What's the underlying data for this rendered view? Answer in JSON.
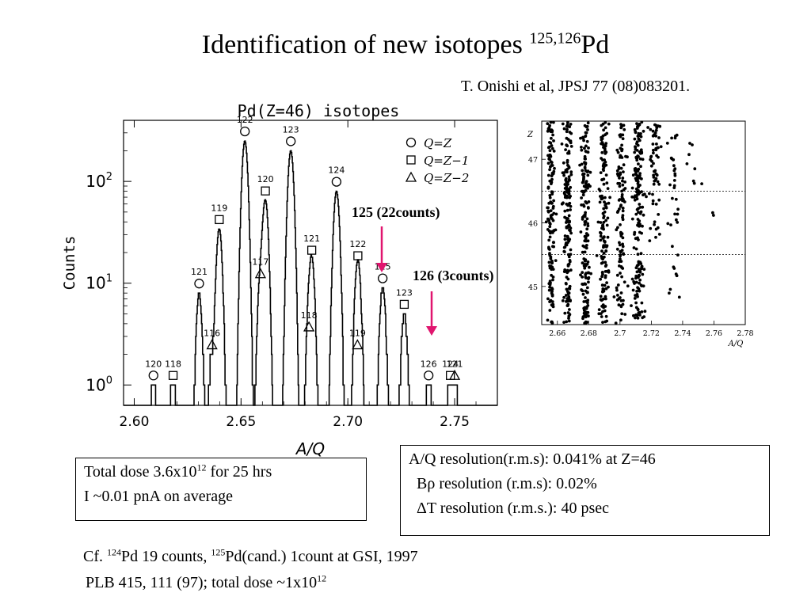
{
  "slide": {
    "title_prefix": "Identification of new isotopes ",
    "title_sup": "125,126",
    "title_suffix": "Pd",
    "reference": "T. Onishi et al, JPSJ 77 (08)083201."
  },
  "annotations": {
    "pd125": "125 (22counts)",
    "pd126": "126 (3counts)",
    "arrow_color": "#e0156e"
  },
  "dose_box": {
    "line1_prefix": "Total dose 3.6x10",
    "line1_sup": "12",
    "line1_suffix": " for 25 hrs",
    "line2": "I ~0.01 pnA on average"
  },
  "resolution_box": {
    "line1": "A/Q resolution(r.m.s): 0.041% at Z=46",
    "line2_symbol": "Bρ",
    "line2_rest": " resolution (r.m.s): 0.02%",
    "line3_symbol": "ΔT",
    "line3_rest": " resolution (r.m.s.): 40 psec"
  },
  "footnote": {
    "cf": "Cf. ",
    "sup1": "124",
    "part1": "Pd  19 counts, ",
    "sup2": "125",
    "part2": "Pd(cand.) 1count at GSI, 1997",
    "line2": "PLB 415, 111 (97); total dose ~1x10",
    "line2_sup": "12"
  },
  "chart_data": [
    {
      "type": "line",
      "title": "Pd(Z=46)  isotopes",
      "xlabel": "A/Q",
      "ylabel": "Counts",
      "xlim": [
        2.595,
        2.77
      ],
      "ylim_log10": [
        -0.2,
        2.6
      ],
      "y_scale": "log",
      "x_ticks": [
        "2.60",
        "2.65",
        "2.70",
        "2.75"
      ],
      "x_tick_values": [
        2.6,
        2.65,
        2.7,
        2.75
      ],
      "y_ticks": [
        {
          "base": "10",
          "exp": "0",
          "value": 1
        },
        {
          "base": "10",
          "exp": "1",
          "value": 10
        },
        {
          "base": "10",
          "exp": "2",
          "value": 100
        }
      ],
      "legend": {
        "position": "top-right",
        "entries": [
          {
            "marker": "circle",
            "label": "Q=Z"
          },
          {
            "marker": "square",
            "label": "Q=Z−1"
          },
          {
            "marker": "triangle",
            "label": "Q=Z−2"
          }
        ]
      },
      "peaks": [
        {
          "a": 120,
          "q": 46,
          "x": 2.609,
          "height": 1,
          "marker": "circle"
        },
        {
          "a": 118,
          "q": 45,
          "x": 2.6182,
          "height": 1,
          "marker": "square"
        },
        {
          "a": 121,
          "q": 46,
          "x": 2.6304,
          "height": 8,
          "marker": "circle"
        },
        {
          "a": 116,
          "q": 44,
          "x": 2.6364,
          "height": 2,
          "marker": "triangle"
        },
        {
          "a": 119,
          "q": 45,
          "x": 2.6398,
          "height": 34,
          "marker": "square"
        },
        {
          "a": 122,
          "q": 46,
          "x": 2.6518,
          "height": 250,
          "marker": "circle"
        },
        {
          "a": 117,
          "q": 44,
          "x": 2.6591,
          "height": 10,
          "marker": "triangle"
        },
        {
          "a": 120,
          "q": 45,
          "x": 2.6614,
          "height": 65,
          "marker": "square"
        },
        {
          "a": 123,
          "q": 46,
          "x": 2.6733,
          "height": 200,
          "marker": "circle"
        },
        {
          "a": 118,
          "q": 44,
          "x": 2.6818,
          "height": 3,
          "marker": "triangle"
        },
        {
          "a": 121,
          "q": 45,
          "x": 2.6831,
          "height": 17,
          "marker": "square"
        },
        {
          "a": 124,
          "q": 46,
          "x": 2.6947,
          "height": 80,
          "marker": "circle"
        },
        {
          "a": 119,
          "q": 44,
          "x": 2.7045,
          "height": 2,
          "marker": "triangle"
        },
        {
          "a": 122,
          "q": 45,
          "x": 2.7047,
          "height": 15,
          "marker": "square"
        },
        {
          "a": 125,
          "q": 46,
          "x": 2.7163,
          "height": 9,
          "marker": "circle"
        },
        {
          "a": 123,
          "q": 45,
          "x": 2.7264,
          "height": 5,
          "marker": "square"
        },
        {
          "a": 126,
          "q": 46,
          "x": 2.7378,
          "height": 1,
          "marker": "circle"
        },
        {
          "a": 121,
          "q": 44,
          "x": 2.75,
          "height": 1,
          "marker": "triangle"
        },
        {
          "a": 124,
          "q": 45,
          "x": 2.748,
          "height": 1,
          "marker": "square"
        }
      ]
    },
    {
      "type": "scatter",
      "xlabel": "A/Q",
      "ylabel": "Z",
      "xlim": [
        2.65,
        2.78
      ],
      "ylim": [
        44.4,
        47.6
      ],
      "x_ticks": [
        "2.66",
        "2.68",
        "2.7",
        "2.72",
        "2.74",
        "2.76",
        "2.78"
      ],
      "x_tick_values": [
        2.66,
        2.68,
        2.7,
        2.72,
        2.74,
        2.76,
        2.78
      ],
      "y_ticks": [
        "45",
        "46",
        "47"
      ],
      "y_tick_values": [
        45,
        46,
        47
      ],
      "dashed_separators": [
        45.5,
        46.5
      ],
      "clusters": [
        {
          "x": 2.656,
          "sx": 0.0012,
          "n": 150,
          "zmin": 44.4,
          "zmax": 47.6
        },
        {
          "x": 2.6665,
          "sx": 0.0014,
          "n": 170,
          "zmin": 44.4,
          "zmax": 47.6
        },
        {
          "x": 2.678,
          "sx": 0.0013,
          "n": 170,
          "zmin": 44.4,
          "zmax": 47.6
        },
        {
          "x": 2.6895,
          "sx": 0.0015,
          "n": 160,
          "zmin": 44.4,
          "zmax": 47.6
        },
        {
          "x": 2.7005,
          "sx": 0.0015,
          "n": 120,
          "zmin": 44.4,
          "zmax": 47.6
        },
        {
          "x": 2.7115,
          "sx": 0.0016,
          "n": 80,
          "zmin": 46.4,
          "zmax": 47.6
        },
        {
          "x": 2.7115,
          "sx": 0.0018,
          "n": 40,
          "zmin": 45.5,
          "zmax": 46.5
        },
        {
          "x": 2.7115,
          "sx": 0.0018,
          "n": 60,
          "zmin": 44.5,
          "zmax": 45.4
        },
        {
          "x": 2.7225,
          "sx": 0.0017,
          "n": 45,
          "zmin": 46.6,
          "zmax": 47.6
        },
        {
          "x": 2.7225,
          "sx": 0.0017,
          "n": 15,
          "zmin": 45.6,
          "zmax": 46.5
        },
        {
          "x": 2.7345,
          "sx": 0.0018,
          "n": 18,
          "zmin": 46.5,
          "zmax": 47.5
        },
        {
          "x": 2.7355,
          "sx": 0.002,
          "n": 10,
          "zmin": 45.6,
          "zmax": 46.4
        },
        {
          "x": 2.7345,
          "sx": 0.0015,
          "n": 8,
          "zmin": 44.8,
          "zmax": 45.5
        },
        {
          "x": 2.746,
          "sx": 0.003,
          "n": 8,
          "zmin": 46.6,
          "zmax": 47.5
        },
        {
          "x": 2.759,
          "sx": 0.001,
          "n": 2,
          "zmin": 46.0,
          "zmax": 46.2
        }
      ]
    }
  ]
}
